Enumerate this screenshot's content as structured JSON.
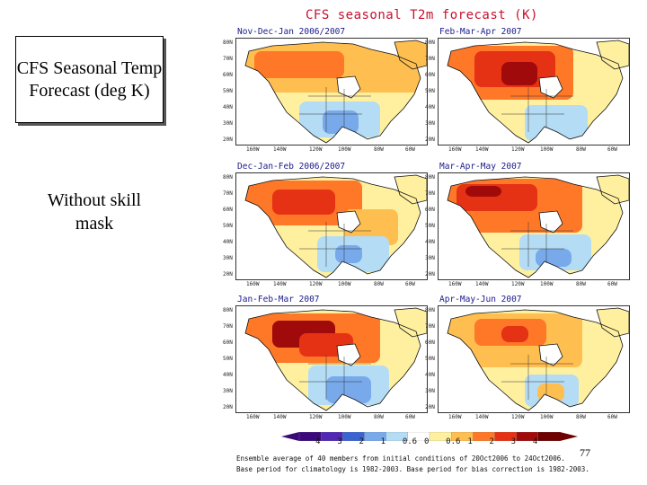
{
  "slide": {
    "title_box": "CFS Seasonal Temp Forecast (deg K)",
    "subtitle": "Without skill mask",
    "page_number": "77"
  },
  "figure": {
    "title": "CFS seasonal T2m forecast (K)",
    "panels": [
      {
        "id": "ndj",
        "title": "Nov-Dec-Jan 2006/2007"
      },
      {
        "id": "fma",
        "title": "Feb-Mar-Apr 2007"
      },
      {
        "id": "djf",
        "title": "Dec-Jan-Feb 2006/2007"
      },
      {
        "id": "mam",
        "title": "Mar-Apr-May 2007"
      },
      {
        "id": "jfm",
        "title": "Jan-Feb-Mar 2007"
      },
      {
        "id": "amj",
        "title": "Apr-May-Jun 2007"
      }
    ],
    "lat_labels": [
      "80N",
      "70N",
      "60N",
      "50N",
      "40N",
      "30N",
      "20N"
    ],
    "lon_labels": [
      "160W",
      "140W",
      "120W",
      "100W",
      "80W",
      "60W"
    ],
    "colorbar": {
      "ticks": [
        "4",
        "3",
        "2",
        "1",
        "0.6",
        "0",
        "0.6",
        "1",
        "2",
        "3",
        "4"
      ],
      "colors": [
        "#3a0a7a",
        "#5028b4",
        "#3c64d0",
        "#78aaeb",
        "#b4dcf5",
        "#ffffff",
        "#fff0a0",
        "#ffbe50",
        "#ff7828",
        "#e63214",
        "#a00a0a",
        "#6e0000"
      ]
    },
    "footnotes": [
      "Ensemble average of 40 members from initial conditions of 20Oct2006 to 24Oct2006.",
      "Base period for climatology is 1982-2003. Base period for bias correction is 1982-2003."
    ]
  }
}
